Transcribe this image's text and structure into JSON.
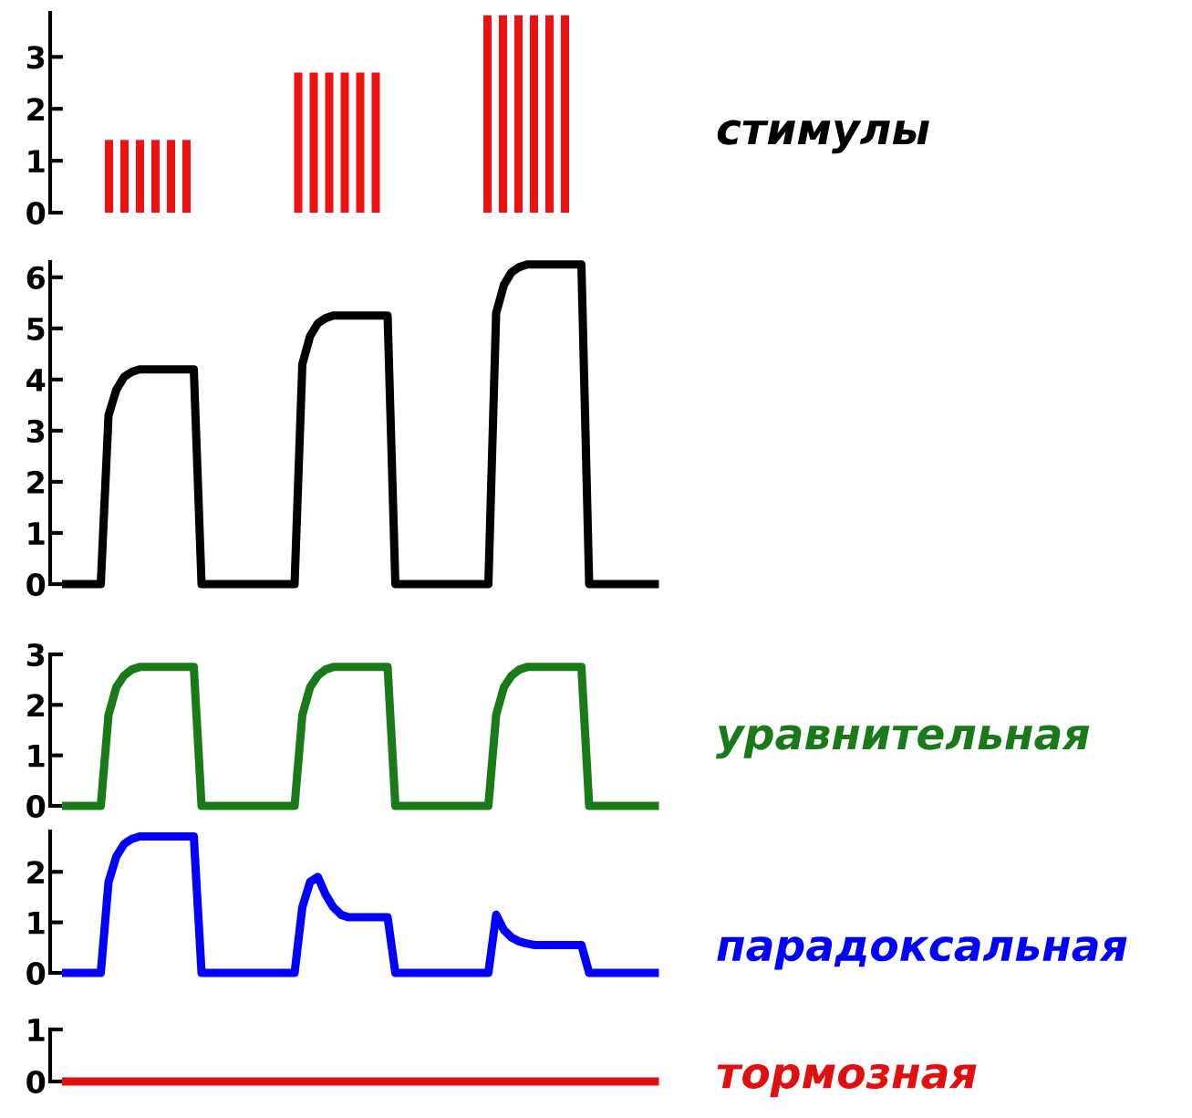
{
  "chart_data": [
    {
      "type": "bar",
      "categories": [
        null,
        null,
        null
      ],
      "series": [
        {
          "color": "#ee1111",
          "values": [
            1.4,
            2.7,
            3.8
          ]
        },
        {
          "color": "#ee1111",
          "values": [
            1.4,
            2.7,
            3.8
          ]
        },
        {
          "color": "#ee1111",
          "values": [
            1.4,
            2.7,
            3.8
          ]
        },
        {
          "color": "#ee1111",
          "values": [
            1.4,
            2.7,
            3.8
          ]
        },
        {
          "color": "#ee1111",
          "values": [
            1.4,
            2.7,
            3.8
          ]
        },
        {
          "name": "стимулы",
          "color": "#ee1111",
          "values": [
            1.4,
            2.7,
            3.8
          ]
        }
      ],
      "ylim": [
        0,
        3.85
      ],
      "yticks": [
        0,
        1,
        2,
        3
      ],
      "tick_labels": "y"
    },
    {
      "type": "line",
      "categories": [
        null,
        null,
        null,
        null,
        null,
        null,
        null,
        null,
        null,
        null,
        null,
        null,
        null,
        null,
        null,
        null,
        null,
        null,
        null,
        null,
        null,
        null,
        null,
        null,
        null,
        null,
        null,
        null,
        null,
        null,
        null,
        null,
        null,
        null,
        null,
        null,
        null,
        null,
        null,
        null,
        null,
        null,
        null,
        null,
        null,
        null,
        null,
        null,
        null,
        null,
        null,
        null,
        null,
        null,
        null,
        null,
        null,
        null,
        null,
        null,
        null,
        null,
        null,
        null,
        null,
        null,
        null,
        null,
        null,
        null,
        null,
        null,
        null,
        null,
        null,
        null,
        null,
        null
      ],
      "color": "#000000",
      "values": [
        0,
        0,
        0,
        0,
        0,
        0,
        3.3,
        3.8,
        4.05,
        4.15,
        4.2,
        4.2,
        4.2,
        4.2,
        4.2,
        4.2,
        4.2,
        4.2,
        0,
        0,
        0,
        0,
        0,
        0,
        0,
        0,
        0,
        0,
        0,
        0,
        0,
        4.3,
        4.85,
        5.1,
        5.2,
        5.25,
        5.25,
        5.25,
        5.25,
        5.25,
        5.25,
        5.25,
        5.25,
        0,
        0,
        0,
        0,
        0,
        0,
        0,
        0,
        0,
        0,
        0,
        0,
        0,
        5.3,
        5.85,
        6.1,
        6.2,
        6.25,
        6.25,
        6.25,
        6.25,
        6.25,
        6.25,
        6.25,
        6.25,
        0,
        0,
        0,
        0,
        0,
        0,
        0,
        0,
        0,
        0
      ],
      "ylim": [
        0,
        6.3
      ],
      "yticks": [
        0,
        1,
        2,
        3,
        4,
        5,
        6
      ],
      "tick_labels": "y"
    },
    {
      "type": "line",
      "categories": [
        null,
        null,
        null,
        null,
        null,
        null,
        null,
        null,
        null,
        null,
        null,
        null,
        null,
        null,
        null,
        null,
        null,
        null,
        null,
        null,
        null,
        null,
        null,
        null,
        null,
        null,
        null,
        null,
        null,
        null,
        null,
        null,
        null,
        null,
        null,
        null,
        null,
        null,
        null,
        null,
        null,
        null,
        null,
        null,
        null,
        null,
        null,
        null,
        null,
        null,
        null,
        null,
        null,
        null,
        null,
        null,
        null,
        null,
        null,
        null,
        null,
        null,
        null,
        null,
        null,
        null,
        null,
        null,
        null,
        null,
        null,
        null,
        null,
        null,
        null,
        null,
        null,
        null
      ],
      "series": [
        {
          "name": "уравнительная",
          "color": "#1a7a1a",
          "values": [
            0,
            0,
            0,
            0,
            0,
            0,
            1.8,
            2.35,
            2.58,
            2.7,
            2.75,
            2.75,
            2.75,
            2.75,
            2.75,
            2.75,
            2.75,
            2.75,
            0,
            0,
            0,
            0,
            0,
            0,
            0,
            0,
            0,
            0,
            0,
            0,
            0,
            1.8,
            2.35,
            2.58,
            2.7,
            2.75,
            2.75,
            2.75,
            2.75,
            2.75,
            2.75,
            2.75,
            2.75,
            0,
            0,
            0,
            0,
            0,
            0,
            0,
            0,
            0,
            0,
            0,
            0,
            0,
            1.8,
            2.35,
            2.58,
            2.7,
            2.75,
            2.75,
            2.75,
            2.75,
            2.75,
            2.75,
            2.75,
            2.75,
            0,
            0,
            0,
            0,
            0,
            0,
            0,
            0,
            0,
            0
          ]
        }
      ],
      "ylim": [
        0,
        3
      ],
      "yticks": [
        0,
        1,
        2,
        3
      ],
      "tick_labels": "y"
    },
    {
      "type": "line",
      "categories": [
        null,
        null,
        null,
        null,
        null,
        null,
        null,
        null,
        null,
        null,
        null,
        null,
        null,
        null,
        null,
        null,
        null,
        null,
        null,
        null,
        null,
        null,
        null,
        null,
        null,
        null,
        null,
        null,
        null,
        null,
        null,
        null,
        null,
        null,
        null,
        null,
        null,
        null,
        null,
        null,
        null,
        null,
        null,
        null,
        null,
        null,
        null,
        null,
        null,
        null,
        null,
        null,
        null,
        null,
        null,
        null,
        null,
        null,
        null,
        null,
        null,
        null,
        null,
        null,
        null,
        null,
        null,
        null,
        null,
        null,
        null,
        null,
        null,
        null,
        null,
        null,
        null,
        null
      ],
      "series": [
        {
          "name": "парадоксальная",
          "color": "#0000ff",
          "values": [
            0,
            0,
            0,
            0,
            0,
            0,
            1.8,
            2.3,
            2.55,
            2.65,
            2.7,
            2.7,
            2.7,
            2.7,
            2.7,
            2.7,
            2.7,
            2.7,
            0,
            0,
            0,
            0,
            0,
            0,
            0,
            0,
            0,
            0,
            0,
            0,
            0,
            1.3,
            1.8,
            1.9,
            1.55,
            1.3,
            1.15,
            1.1,
            1.1,
            1.1,
            1.1,
            1.1,
            1.1,
            0,
            0,
            0,
            0,
            0,
            0,
            0,
            0,
            0,
            0,
            0,
            0,
            0,
            1.15,
            0.85,
            0.7,
            0.62,
            0.58,
            0.55,
            0.55,
            0.55,
            0.55,
            0.55,
            0.55,
            0.55,
            0,
            0,
            0,
            0,
            0,
            0,
            0,
            0,
            0,
            0
          ]
        }
      ],
      "ylim": [
        0,
        2.8
      ],
      "yticks": [
        0,
        1,
        2
      ],
      "tick_labels": "y"
    },
    {
      "type": "line",
      "categories": [
        null,
        null,
        null,
        null,
        null,
        null,
        null,
        null,
        null,
        null,
        null,
        null,
        null,
        null,
        null,
        null,
        null,
        null,
        null,
        null,
        null,
        null,
        null,
        null,
        null,
        null,
        null,
        null,
        null,
        null,
        null,
        null,
        null,
        null,
        null,
        null,
        null,
        null,
        null,
        null,
        null,
        null,
        null,
        null,
        null,
        null,
        null,
        null,
        null,
        null,
        null,
        null,
        null,
        null,
        null,
        null,
        null,
        null,
        null,
        null,
        null,
        null,
        null,
        null,
        null,
        null,
        null,
        null,
        null,
        null,
        null,
        null,
        null,
        null,
        null,
        null,
        null,
        null
      ],
      "series": [
        {
          "name": "тормозная",
          "color": "#e01010",
          "values": [
            0,
            0,
            0,
            0,
            0,
            0,
            0,
            0,
            0,
            0,
            0,
            0,
            0,
            0,
            0,
            0,
            0,
            0,
            0,
            0,
            0,
            0,
            0,
            0,
            0,
            0,
            0,
            0,
            0,
            0,
            0,
            0,
            0,
            0,
            0,
            0,
            0,
            0,
            0,
            0,
            0,
            0,
            0,
            0,
            0,
            0,
            0,
            0,
            0,
            0,
            0,
            0,
            0,
            0,
            0,
            0,
            0,
            0,
            0,
            0,
            0,
            0,
            0,
            0,
            0,
            0,
            0,
            0,
            0,
            0,
            0,
            0,
            0,
            0,
            0,
            0,
            0,
            0
          ]
        }
      ],
      "ylim": [
        0,
        1
      ],
      "yticks": [
        0,
        1
      ],
      "tick_labels": "y"
    }
  ]
}
